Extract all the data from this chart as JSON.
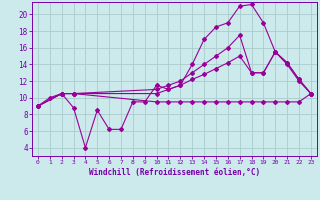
{
  "bg_color": "#cce9ec",
  "grid_color": "#aacccc",
  "line_color": "#990099",
  "xlabel": "Windchill (Refroidissement éolien,°C)",
  "xlabel_color": "#7700aa",
  "tick_color": "#7700aa",
  "ylim": [
    3,
    21.5
  ],
  "xlim": [
    -0.5,
    23.5
  ],
  "yticks": [
    4,
    6,
    8,
    10,
    12,
    14,
    16,
    18,
    20
  ],
  "xticks": [
    0,
    1,
    2,
    3,
    4,
    5,
    6,
    7,
    8,
    9,
    10,
    11,
    12,
    13,
    14,
    15,
    16,
    17,
    18,
    19,
    20,
    21,
    22,
    23
  ],
  "series1_x": [
    0,
    1,
    2,
    3,
    4,
    5,
    6,
    7,
    8,
    9,
    10,
    11,
    12,
    13,
    14,
    15,
    16,
    17,
    18,
    19,
    20,
    21,
    22,
    23
  ],
  "series1_y": [
    9.0,
    10.0,
    10.5,
    8.8,
    4.0,
    8.5,
    6.2,
    6.2,
    9.5,
    9.5,
    11.5,
    11.0,
    11.5,
    14.0,
    17.0,
    18.5,
    19.0,
    21.0,
    21.2,
    19.0,
    15.5,
    14.0,
    12.0,
    10.5
  ],
  "series2_x": [
    0,
    2,
    3,
    10,
    11,
    12,
    13,
    14,
    15,
    16,
    17,
    18,
    19,
    20,
    21,
    22,
    23
  ],
  "series2_y": [
    9.0,
    10.5,
    10.5,
    11.0,
    11.5,
    12.0,
    13.0,
    14.0,
    15.0,
    16.0,
    17.5,
    13.0,
    13.0,
    15.5,
    14.2,
    12.2,
    10.5
  ],
  "series3_x": [
    0,
    2,
    3,
    10,
    11,
    12,
    13,
    14,
    15,
    16,
    17,
    18,
    19,
    20,
    21,
    22,
    23
  ],
  "series3_y": [
    9.0,
    10.5,
    10.5,
    10.5,
    11.0,
    11.5,
    12.2,
    12.8,
    13.5,
    14.2,
    15.0,
    13.0,
    13.0,
    15.5,
    14.2,
    12.2,
    10.5
  ],
  "series4_x": [
    0,
    2,
    3,
    10,
    11,
    12,
    13,
    14,
    15,
    16,
    17,
    18,
    19,
    20,
    21,
    22,
    23
  ],
  "series4_y": [
    9.0,
    10.5,
    10.5,
    9.5,
    9.5,
    9.5,
    9.5,
    9.5,
    9.5,
    9.5,
    9.5,
    9.5,
    9.5,
    9.5,
    9.5,
    9.5,
    10.5
  ]
}
